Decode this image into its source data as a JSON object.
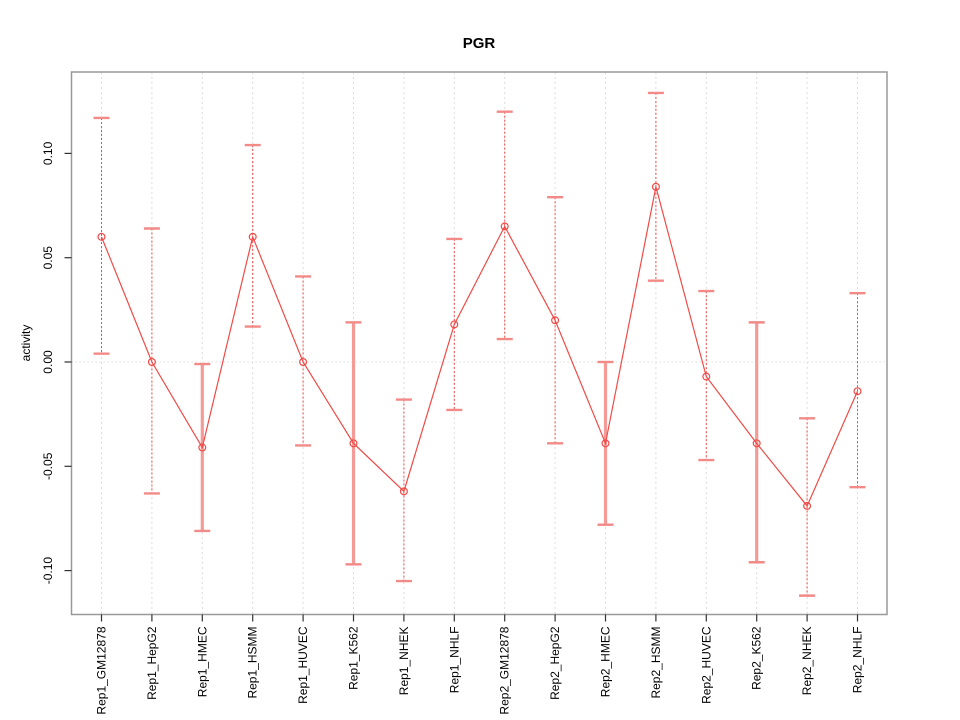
{
  "chart_data": {
    "type": "line",
    "title": "PGR",
    "xlabel": "",
    "ylabel": "activity",
    "legend_position": "none",
    "categories": [
      "Rep1_GM12878",
      "Rep1_HepG2",
      "Rep1_HMEC",
      "Rep1_HSMM",
      "Rep1_HUVEC",
      "Rep1_K562",
      "Rep1_NHEK",
      "Rep1_NHLF",
      "Rep2_GM12878",
      "Rep2_HepG2",
      "Rep2_HMEC",
      "Rep2_HSMM",
      "Rep2_HUVEC",
      "Rep2_K562",
      "Rep2_NHEK",
      "Rep2_NHLF"
    ],
    "series": [
      {
        "name": "activity",
        "values": [
          0.06,
          0.0,
          -0.041,
          0.06,
          0.0,
          -0.039,
          -0.062,
          0.018,
          0.065,
          0.02,
          -0.039,
          0.084,
          -0.007,
          -0.039,
          -0.069,
          -0.014
        ],
        "lower": [
          0.004,
          -0.063,
          -0.081,
          0.017,
          -0.04,
          -0.097,
          -0.105,
          -0.023,
          0.011,
          -0.039,
          -0.078,
          0.039,
          -0.047,
          -0.096,
          -0.112,
          -0.06
        ],
        "upper": [
          0.117,
          0.064,
          -0.001,
          0.104,
          0.041,
          0.019,
          -0.018,
          0.059,
          0.12,
          0.079,
          0.0,
          0.129,
          0.034,
          0.019,
          -0.027,
          0.033
        ]
      }
    ],
    "thick_error_bar_indices": [
      2,
      5,
      10,
      13
    ],
    "ytick_labels": [
      "0.10",
      "0.05",
      "0.00",
      "-0.05",
      "-0.10"
    ],
    "ytick_values": [
      0.1,
      0.05,
      0.0,
      -0.05,
      -0.1
    ],
    "ylim": [
      -0.121,
      0.139
    ],
    "grid": {
      "vertical_per_category": "dashed",
      "zero_line": "dotted"
    },
    "colors": {
      "series_line": "#ef4b47",
      "error_cap": "#f28a87",
      "thick_error_bar": "#f49b97",
      "gridline": "#dcdcdc",
      "plot_border": "#999999",
      "tick_mark": "#333333",
      "label_text": "#000000"
    }
  }
}
